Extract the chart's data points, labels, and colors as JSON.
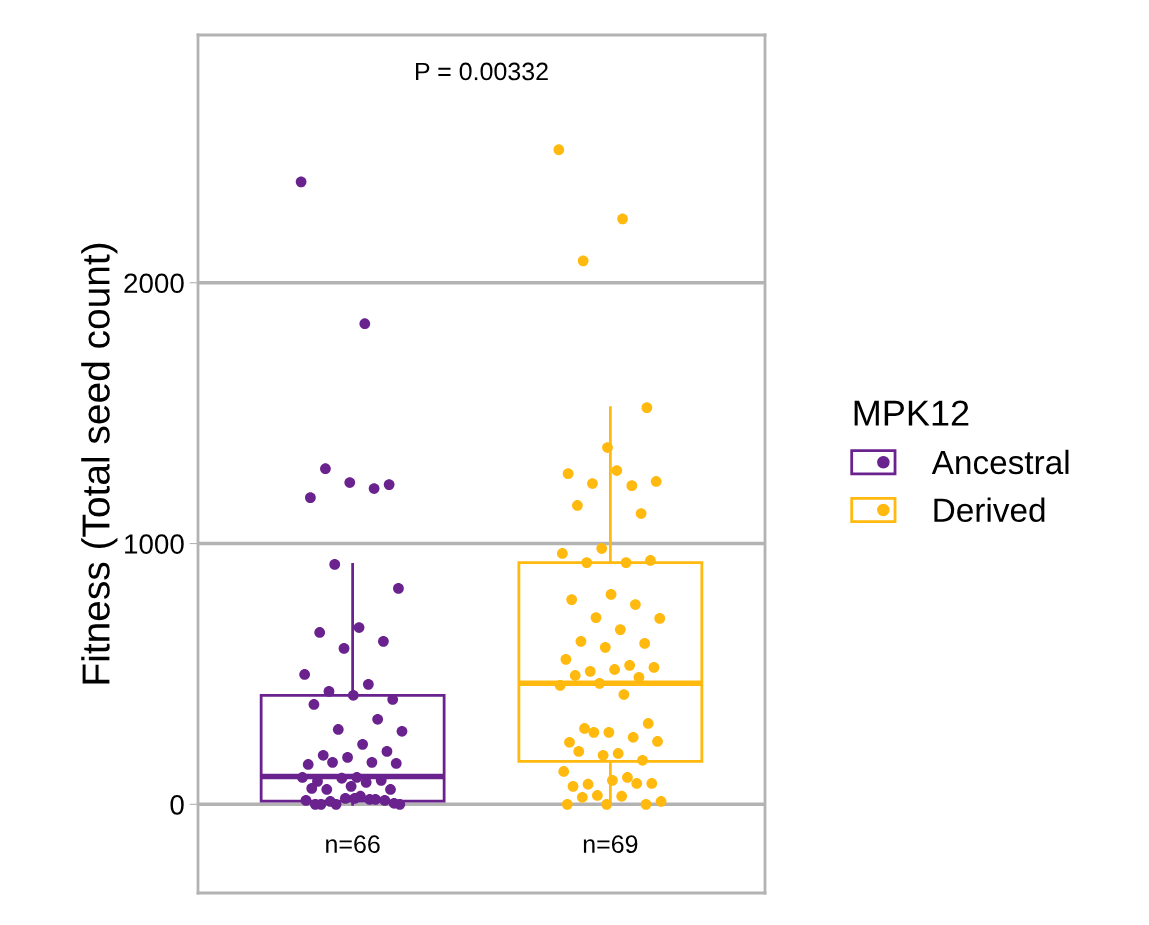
{
  "chart_data": {
    "type": "box",
    "ylabel": "Fitness (Total seed count)",
    "legend_title": "MPK12",
    "legend": "right",
    "grid": "y",
    "categories": [
      "n=66",
      "n=69"
    ],
    "ylim": [
      -340,
      2950
    ],
    "yticks": [
      0,
      1000,
      2000
    ],
    "annotations": [
      "P = 0.00332"
    ],
    "series": [
      {
        "name": "Ancestral",
        "color": "#6a228e",
        "boxes": [
          {
            "low": 0,
            "q1": 12,
            "median": 107,
            "q3": 418,
            "high": 920
          },
          null
        ]
      },
      {
        "name": "Derived",
        "color": "#ffb90f",
        "boxes": [
          null,
          {
            "low": 0,
            "q1": 165,
            "median": 464,
            "q3": 927,
            "high": 1521
          }
        ]
      },
      {
        "type": "scatter",
        "color": "#6a228e",
        "x": [
          "n=66",
          "n=66",
          "n=66",
          "n=66",
          "n=66",
          "n=66",
          "n=66",
          "n=66",
          "n=66",
          "n=66",
          "n=66",
          "n=66",
          "n=66",
          "n=66",
          "n=66",
          "n=66",
          "n=66",
          "n=66",
          "n=66",
          "n=66",
          "n=66",
          "n=66",
          "n=66",
          "n=66",
          "n=66",
          "n=66",
          "n=66",
          "n=66",
          "n=66",
          "n=66",
          "n=66",
          "n=66",
          "n=66",
          "n=66",
          "n=66",
          "n=66",
          "n=66",
          "n=66",
          "n=66",
          "n=66",
          "n=66",
          "n=66",
          "n=66",
          "n=66",
          "n=66",
          "n=66",
          "n=66",
          "n=66",
          "n=66",
          "n=66",
          "n=66",
          "n=66",
          "n=66"
        ],
        "values": [
          2387,
          1843,
          1287,
          1226,
          1234,
          1176,
          1211,
          920,
          828,
          678,
          659,
          625,
          598,
          498,
          460,
          433,
          402,
          418,
          383,
          326,
          287,
          280,
          230,
          188,
          203,
          180,
          153,
          161,
          161,
          157,
          103,
          88,
          92,
          100,
          103,
          84,
          57,
          57,
          69,
          61,
          19,
          0,
          0,
          31,
          0,
          15,
          23,
          15,
          19,
          11,
          4,
          23,
          0
        ]
      },
      {
        "type": "scatter",
        "color": "#ffb90f",
        "x": [
          "n=69",
          "n=69",
          "n=69",
          "n=69",
          "n=69",
          "n=69",
          "n=69",
          "n=69",
          "n=69",
          "n=69",
          "n=69",
          "n=69",
          "n=69",
          "n=69",
          "n=69",
          "n=69",
          "n=69",
          "n=69",
          "n=69",
          "n=69",
          "n=69",
          "n=69",
          "n=69",
          "n=69",
          "n=69",
          "n=69",
          "n=69",
          "n=69",
          "n=69",
          "n=69",
          "n=69",
          "n=69",
          "n=69",
          "n=69",
          "n=69",
          "n=69",
          "n=69",
          "n=69",
          "n=69",
          "n=69",
          "n=69",
          "n=69",
          "n=69",
          "n=69",
          "n=69",
          "n=69",
          "n=69",
          "n=69",
          "n=69",
          "n=69",
          "n=69",
          "n=69",
          "n=69",
          "n=69",
          "n=69",
          "n=69",
          "n=69",
          "n=69",
          "n=69",
          "n=69",
          "n=69"
        ],
        "values": [
          2510,
          2245,
          2084,
          1521,
          1368,
          1268,
          1222,
          1230,
          1238,
          1280,
          1146,
          1115,
          981,
          962,
          927,
          927,
          935,
          805,
          785,
          766,
          716,
          713,
          670,
          625,
          617,
          602,
          556,
          533,
          510,
          525,
          517,
          494,
          487,
          464,
          456,
          421,
          291,
          310,
          276,
          238,
          257,
          276,
          241,
          195,
          203,
          169,
          188,
          126,
          103,
          77,
          80,
          92,
          69,
          80,
          34,
          11,
          31,
          27,
          0,
          0,
          0
        ]
      }
    ]
  }
}
